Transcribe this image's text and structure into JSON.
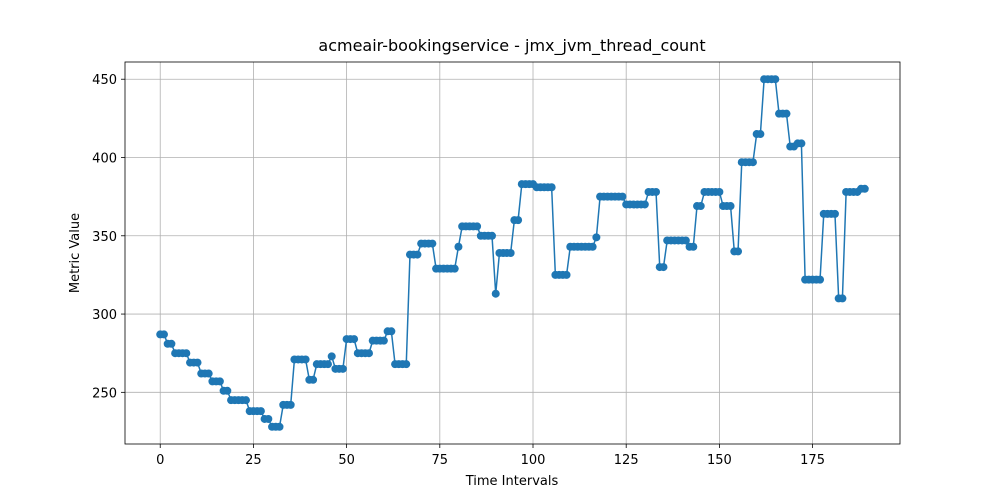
{
  "chart_data": {
    "type": "line",
    "title": "acmeair-bookingservice - jmx_jvm_thread_count",
    "x_label": "Time Intervals",
    "y_label": "Metric Value",
    "x": [
      0,
      1,
      2,
      3,
      4,
      5,
      6,
      7,
      8,
      9,
      10,
      11,
      12,
      13,
      14,
      15,
      16,
      17,
      18,
      19,
      20,
      21,
      22,
      23,
      24,
      25,
      26,
      27,
      28,
      29,
      30,
      31,
      32,
      33,
      34,
      35,
      36,
      37,
      38,
      39,
      40,
      41,
      42,
      43,
      44,
      45,
      46,
      47,
      48,
      49,
      50,
      51,
      52,
      53,
      54,
      55,
      56,
      57,
      58,
      59,
      60,
      61,
      62,
      63,
      64,
      65,
      66,
      67,
      68,
      69,
      70,
      71,
      72,
      73,
      74,
      75,
      76,
      77,
      78,
      79,
      80,
      81,
      82,
      83,
      84,
      85,
      86,
      87,
      88,
      89,
      90,
      91,
      92,
      93,
      94,
      95,
      96,
      97,
      98,
      99,
      100,
      101,
      102,
      103,
      104,
      105,
      106,
      107,
      108,
      109,
      110,
      111,
      112,
      113,
      114,
      115,
      116,
      117,
      118,
      119,
      120,
      121,
      122,
      123,
      124,
      125,
      126,
      127,
      128,
      129,
      130,
      131,
      132,
      133,
      134,
      135,
      136,
      137,
      138,
      139,
      140,
      141,
      142,
      143,
      144,
      145,
      146,
      147,
      148,
      149,
      150,
      151,
      152,
      153,
      154,
      155,
      156,
      157,
      158,
      159,
      160,
      161,
      162,
      163,
      164,
      165,
      166,
      167,
      168,
      169,
      170,
      171,
      172,
      173,
      174,
      175,
      176,
      177,
      178,
      179,
      180,
      181,
      182,
      183,
      184,
      185,
      186,
      187,
      188,
      189
    ],
    "values": [
      287,
      287,
      281,
      281,
      275,
      275,
      275,
      275,
      269,
      269,
      269,
      262,
      262,
      262,
      257,
      257,
      257,
      251,
      251,
      245,
      245,
      245,
      245,
      245,
      238,
      238,
      238,
      238,
      233,
      233,
      228,
      228,
      228,
      242,
      242,
      242,
      271,
      271,
      271,
      271,
      258,
      258,
      268,
      268,
      268,
      268,
      273,
      265,
      265,
      265,
      284,
      284,
      284,
      275,
      275,
      275,
      275,
      283,
      283,
      283,
      283,
      289,
      289,
      268,
      268,
      268,
      268,
      338,
      338,
      338,
      345,
      345,
      345,
      345,
      329,
      329,
      329,
      329,
      329,
      329,
      343,
      356,
      356,
      356,
      356,
      356,
      350,
      350,
      350,
      350,
      313,
      339,
      339,
      339,
      339,
      360,
      360,
      383,
      383,
      383,
      383,
      381,
      381,
      381,
      381,
      381,
      325,
      325,
      325,
      325,
      343,
      343,
      343,
      343,
      343,
      343,
      343,
      349,
      375,
      375,
      375,
      375,
      375,
      375,
      375,
      370,
      370,
      370,
      370,
      370,
      370,
      378,
      378,
      378,
      330,
      330,
      347,
      347,
      347,
      347,
      347,
      347,
      343,
      343,
      369,
      369,
      378,
      378,
      378,
      378,
      378,
      369,
      369,
      369,
      340,
      340,
      397,
      397,
      397,
      397,
      415,
      415,
      450,
      450,
      450,
      450,
      428,
      428,
      428,
      407,
      407,
      409,
      409,
      322,
      322,
      322,
      322,
      322,
      364,
      364,
      364,
      364,
      310,
      310,
      378,
      378,
      378,
      378,
      380,
      380
    ],
    "color": "#1f77b4",
    "xlim": [
      -9.45,
      198.45
    ],
    "xticks": [
      0,
      25,
      50,
      75,
      100,
      125,
      150,
      175
    ],
    "ylim": [
      217,
      461
    ],
    "yticks": [
      250,
      300,
      350,
      400,
      450
    ],
    "grid": true
  }
}
